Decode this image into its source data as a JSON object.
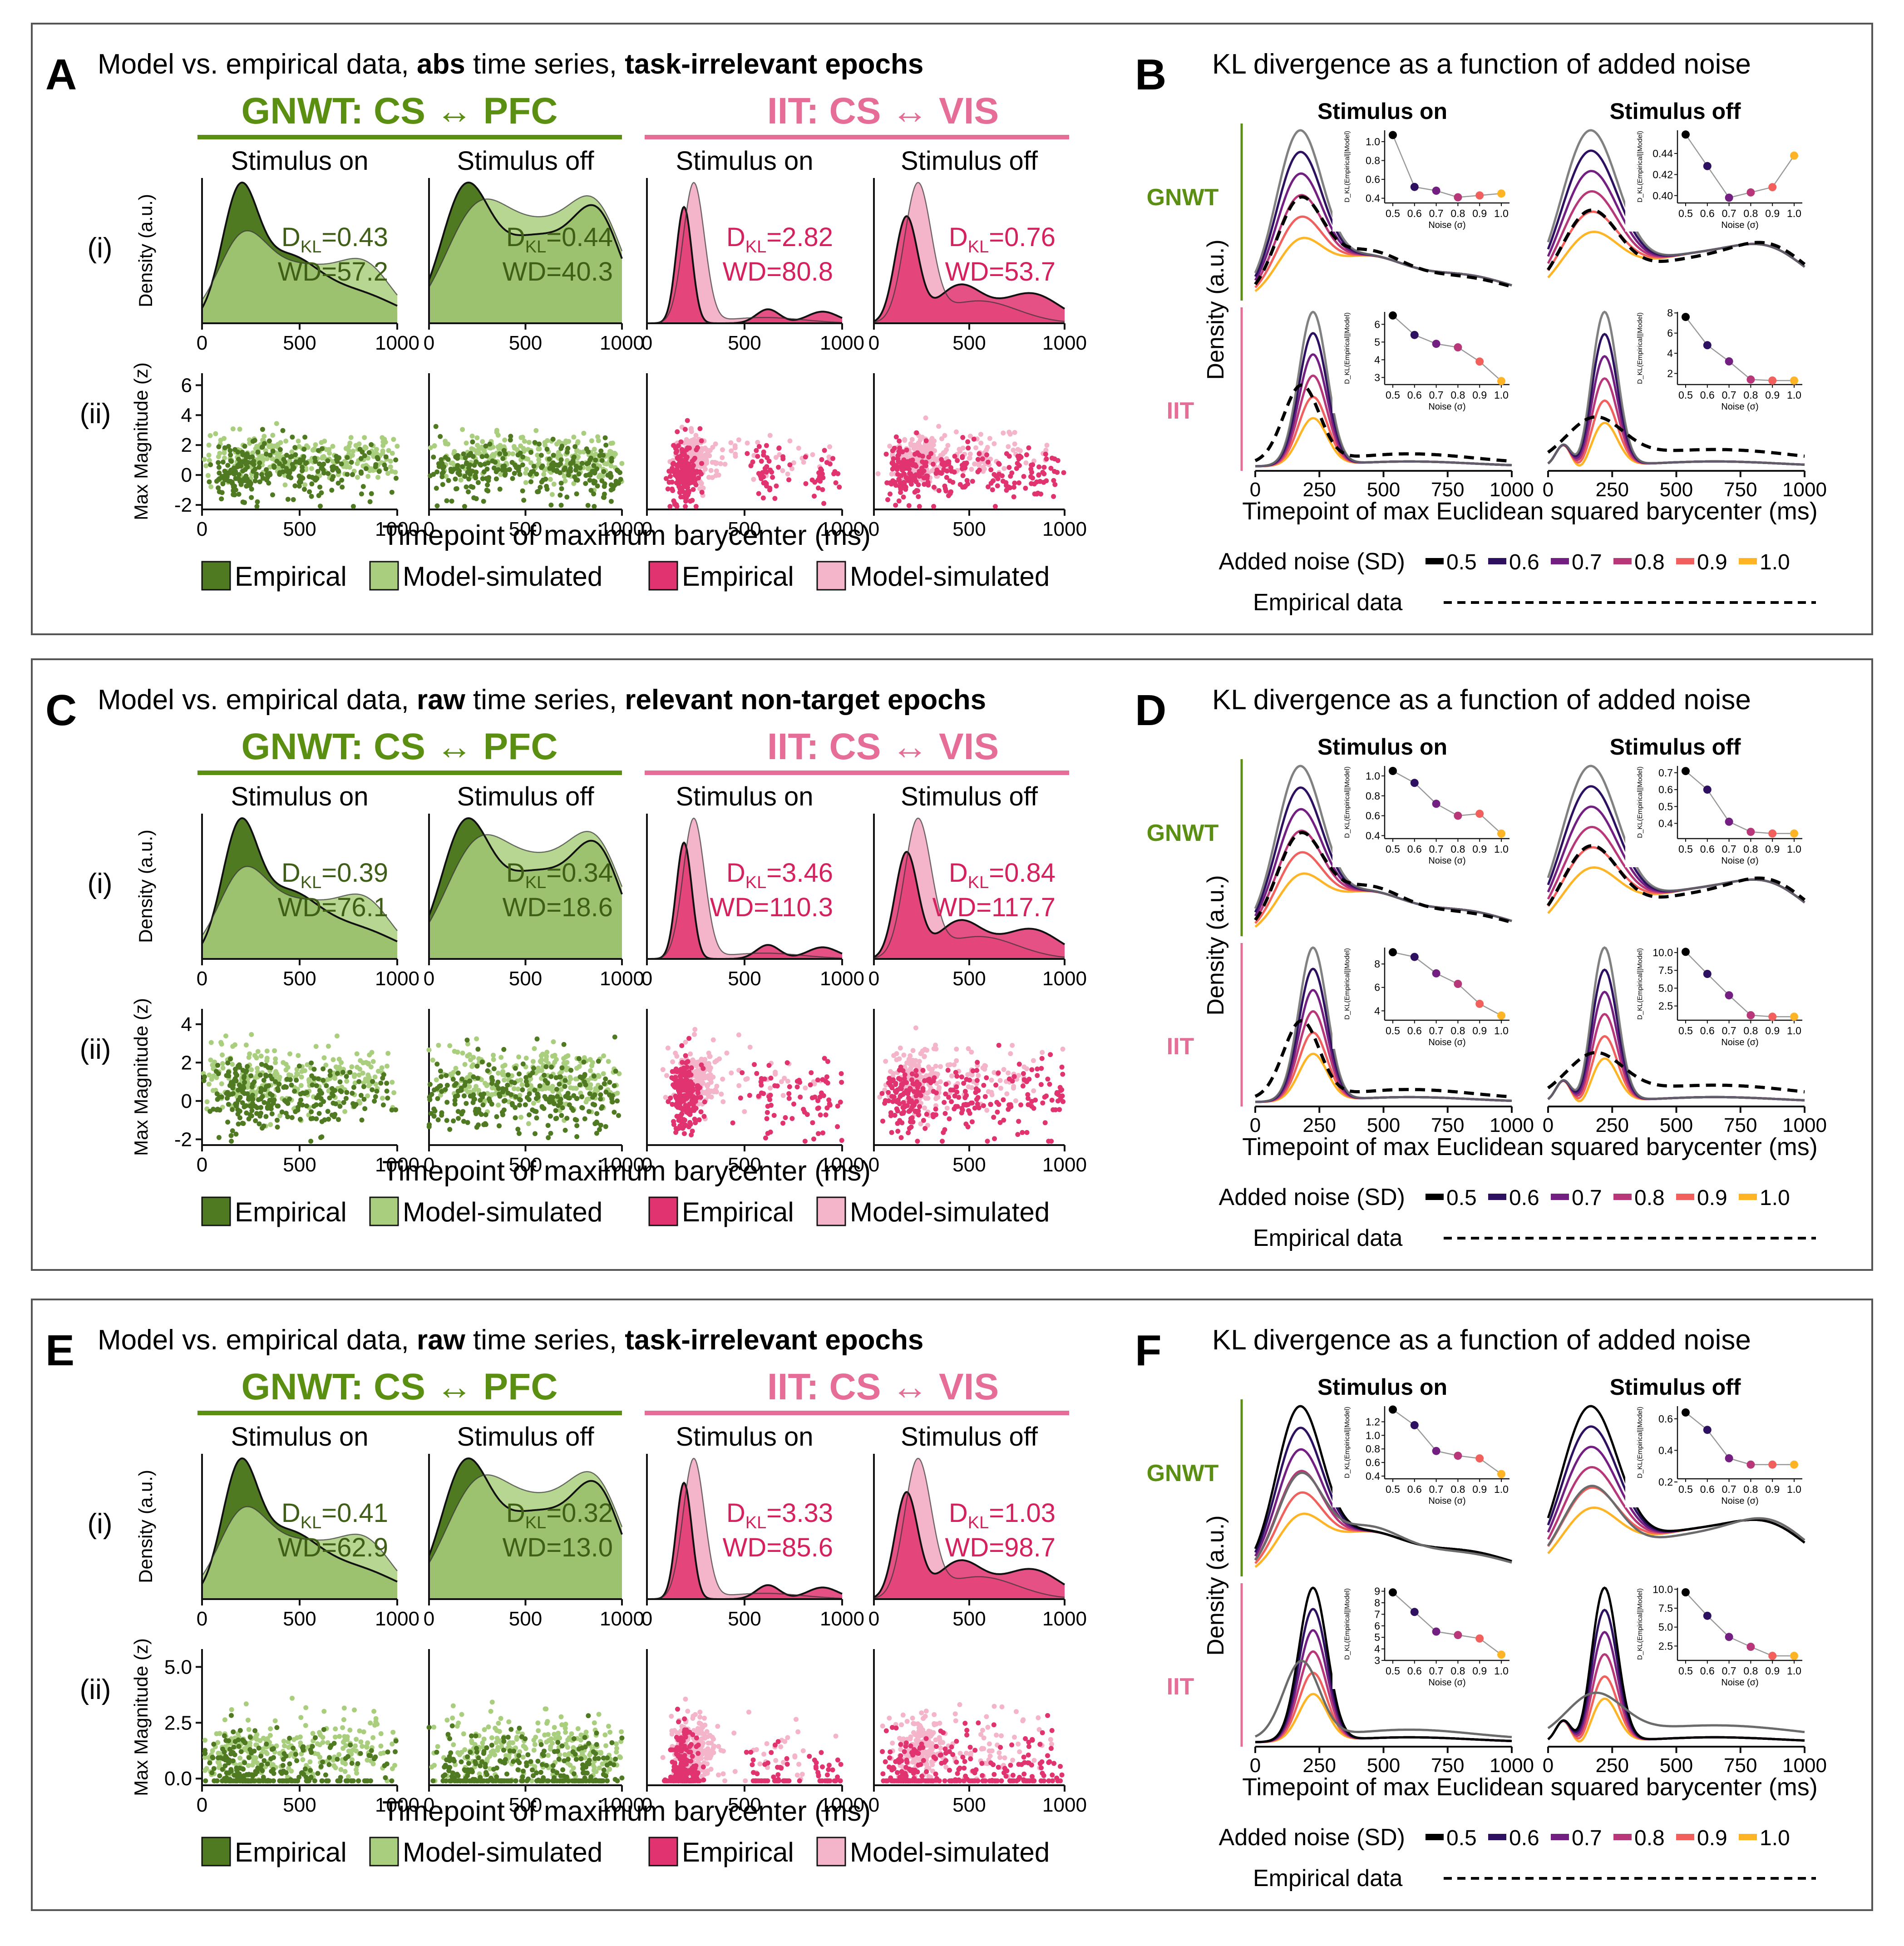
{
  "colors": {
    "gnwt": "#5b8f12",
    "gnwt_empirical": "#4f7a22",
    "gnwt_model": "#a9cf7e",
    "iit": "#e56d97",
    "iit_empirical": "#e0336f",
    "iit_model": "#f4b5cb",
    "gnwt_text": "#3f5f16",
    "iit_text": "#d6215f",
    "noise": [
      "#000000",
      "#2d1160",
      "#721f81",
      "#b73779",
      "#f1605d",
      "#feb424"
    ],
    "model_ref_grey": "#6b6b6b"
  },
  "common": {
    "theory_gnwt": "GNWT: CS ↔ PFC",
    "theory_iit": "IIT: CS ↔ VIS",
    "stim_on": "Stimulus on",
    "stim_off": "Stimulus off",
    "row_i": "(i)",
    "row_ii": "(ii)",
    "density_label": "Density (a.u.)",
    "maxmag_label": "Max Magnitude (z)",
    "xlabel_left": "Timepoint of maximum barycenter (ms)",
    "legend_empirical": "Empirical",
    "legend_model": "Model-simulated",
    "kl_title": "KL divergence as a function of added noise",
    "gnwt_row": "GNWT",
    "iit_row": "IIT",
    "density_label_right": "Density (a.u.)",
    "xlabel_right": "Timepoint of max Euclidean squared barycenter (ms)",
    "noise_legend_label": "Added noise (SD)",
    "noise_levels": [
      "0.5",
      "0.6",
      "0.7",
      "0.8",
      "0.9",
      "1.0"
    ],
    "empirical_data_label": "Empirical data",
    "inset_ylabel": "D_KL(Empirical||Model)",
    "inset_xlabel": "Noise (σ)",
    "inset_xticks": [
      "0.5",
      "0.6",
      "0.7",
      "0.8",
      "0.9",
      "1.0"
    ],
    "xticks_left": [
      "0",
      "500",
      "1000"
    ],
    "xticks_right": [
      "0",
      "250",
      "500",
      "750",
      "1000"
    ]
  },
  "panels": [
    {
      "letter_left": "A",
      "letter_right": "B",
      "title_parts": [
        {
          "text": "Model vs. empirical data, ",
          "bold": false
        },
        {
          "text": "abs",
          "bold": true
        },
        {
          "text": " time series, ",
          "bold": false
        },
        {
          "text": "task-irrelevant epochs",
          "bold": true
        }
      ],
      "stats": [
        {
          "dkl": "=0.43",
          "wd": "WD=57.2"
        },
        {
          "dkl": "=0.44",
          "wd": "WD=40.3"
        },
        {
          "dkl": "=2.82",
          "wd": "WD=80.8"
        },
        {
          "dkl": "=0.76",
          "wd": "WD=53.7"
        }
      ],
      "scatter_yticks": [
        "6",
        "4",
        "2",
        "0",
        "-2"
      ],
      "empirical_style": "dashed",
      "insets": [
        {
          "values": [
            1.07,
            0.52,
            0.48,
            0.41,
            0.43,
            0.45
          ],
          "yticks": [
            "0.4",
            "0.6",
            "0.8",
            "1.0"
          ],
          "ylim": [
            0.35,
            1.12
          ]
        },
        {
          "values": [
            0.458,
            0.428,
            0.398,
            0.403,
            0.408,
            0.438
          ],
          "yticks": [
            "0.40",
            "0.42",
            "0.44"
          ],
          "ylim": [
            0.393,
            0.462
          ]
        },
        {
          "values": [
            6.5,
            5.4,
            4.9,
            4.7,
            3.9,
            2.8
          ],
          "yticks": [
            "3",
            "4",
            "5",
            "6"
          ],
          "ylim": [
            2.6,
            6.7
          ]
        },
        {
          "values": [
            7.6,
            4.8,
            3.2,
            1.4,
            1.3,
            1.3
          ],
          "yticks": [
            "2",
            "4",
            "6",
            "8"
          ],
          "ylim": [
            0.9,
            8.1
          ]
        }
      ]
    },
    {
      "letter_left": "C",
      "letter_right": "D",
      "title_parts": [
        {
          "text": "Model vs. empirical data, ",
          "bold": false
        },
        {
          "text": "raw",
          "bold": true
        },
        {
          "text": " time series, ",
          "bold": false
        },
        {
          "text": "relevant non-target epochs",
          "bold": true
        }
      ],
      "stats": [
        {
          "dkl": "=0.39",
          "wd": "WD=76.1"
        },
        {
          "dkl": "=0.34",
          "wd": "WD=18.6"
        },
        {
          "dkl": "=3.46",
          "wd": "WD=110.3"
        },
        {
          "dkl": "=0.84",
          "wd": "WD=117.7"
        }
      ],
      "scatter_yticks": [
        "4",
        "2",
        "0",
        "-2"
      ],
      "empirical_style": "dashed",
      "insets": [
        {
          "values": [
            1.05,
            0.93,
            0.72,
            0.6,
            0.62,
            0.42
          ],
          "yticks": [
            "0.4",
            "0.6",
            "0.8",
            "1.0"
          ],
          "ylim": [
            0.37,
            1.1
          ]
        },
        {
          "values": [
            0.71,
            0.6,
            0.41,
            0.35,
            0.34,
            0.34
          ],
          "yticks": [
            "0.4",
            "0.5",
            "0.6",
            "0.7"
          ],
          "ylim": [
            0.31,
            0.74
          ]
        },
        {
          "values": [
            9.0,
            8.6,
            7.2,
            6.3,
            4.6,
            3.6
          ],
          "yticks": [
            "4",
            "6",
            "8"
          ],
          "ylim": [
            3.2,
            9.4
          ]
        },
        {
          "values": [
            10.1,
            7.0,
            4.0,
            1.2,
            1.0,
            1.0
          ],
          "yticks": [
            "2.5",
            "5.0",
            "7.5",
            "10.0"
          ],
          "ylim": [
            0.5,
            10.7
          ]
        }
      ]
    },
    {
      "letter_left": "E",
      "letter_right": "F",
      "title_parts": [
        {
          "text": "Model vs. empirical data, ",
          "bold": false
        },
        {
          "text": "raw",
          "bold": true
        },
        {
          "text": " time series, ",
          "bold": false
        },
        {
          "text": "task-irrelevant epochs",
          "bold": true
        }
      ],
      "stats": [
        {
          "dkl": "=0.41",
          "wd": "WD=62.9"
        },
        {
          "dkl": "=0.32",
          "wd": "WD=13.0"
        },
        {
          "dkl": "=3.33",
          "wd": "WD=85.6"
        },
        {
          "dkl": "=1.03",
          "wd": "WD=98.7"
        }
      ],
      "scatter_yticks": [
        "5.0",
        "2.5",
        "0.0"
      ],
      "empirical_style": "grey",
      "insets": [
        {
          "values": [
            1.38,
            1.15,
            0.77,
            0.7,
            0.66,
            0.43
          ],
          "yticks": [
            "0.4",
            "0.6",
            "0.8",
            "1.0",
            "1.2"
          ],
          "ylim": [
            0.36,
            1.43
          ]
        },
        {
          "values": [
            0.64,
            0.53,
            0.35,
            0.31,
            0.31,
            0.31
          ],
          "yticks": [
            "0.2",
            "0.4",
            "0.6"
          ],
          "ylim": [
            0.22,
            0.68
          ]
        },
        {
          "values": [
            8.9,
            7.2,
            5.5,
            5.2,
            4.9,
            3.5
          ],
          "yticks": [
            "3",
            "4",
            "5",
            "6",
            "7",
            "8",
            "9"
          ],
          "ylim": [
            3.0,
            9.3
          ]
        },
        {
          "values": [
            9.6,
            6.5,
            3.7,
            2.4,
            1.2,
            1.2
          ],
          "yticks": [
            "2.5",
            "5.0",
            "7.5",
            "10.0"
          ],
          "ylim": [
            0.6,
            10.2
          ]
        }
      ]
    }
  ],
  "chart_data": [
    {
      "type": "scatter",
      "title": "Model vs. empirical data, abs time series, task-irrelevant epochs",
      "series": [
        {
          "name": "Empirical"
        },
        {
          "name": "Model-simulated"
        }
      ],
      "xlim": [
        0,
        1000
      ],
      "xlabel": "Timepoint of maximum barycenter (ms)",
      "ylabel": "Max Magnitude (z)",
      "values": [
        {
          "theory": "GNWT: CS ↔ PFC",
          "condition": "Stimulus on",
          "dkl": 0.43,
          "wd": 57.2
        },
        {
          "theory": "GNWT: CS ↔ PFC",
          "condition": "Stimulus off",
          "dkl": 0.44,
          "wd": 40.3
        },
        {
          "theory": "IIT: CS ↔ VIS",
          "condition": "Stimulus on",
          "dkl": 2.82,
          "wd": 80.8
        },
        {
          "theory": "IIT: CS ↔ VIS",
          "condition": "Stimulus off",
          "dkl": 0.76,
          "wd": 53.7
        }
      ]
    },
    {
      "type": "line",
      "title": "KL divergence as a function of added noise",
      "x": [
        0.5,
        0.6,
        0.7,
        0.8,
        0.9,
        1.0
      ],
      "xlabel": "Noise (σ)",
      "ylabel": "D_KL(Empirical||Model)",
      "series": [
        {
          "name": "GNWT · Stimulus on",
          "values": [
            1.07,
            0.52,
            0.48,
            0.41,
            0.43,
            0.45
          ]
        },
        {
          "name": "GNWT · Stimulus off",
          "values": [
            0.458,
            0.428,
            0.398,
            0.403,
            0.408,
            0.438
          ]
        },
        {
          "name": "IIT · Stimulus on",
          "values": [
            6.5,
            5.4,
            4.9,
            4.7,
            3.9,
            2.8
          ]
        },
        {
          "name": "IIT · Stimulus off",
          "values": [
            7.6,
            4.8,
            3.2,
            1.4,
            1.3,
            1.3
          ]
        }
      ]
    },
    {
      "type": "scatter",
      "title": "Model vs. empirical data, raw time series, relevant non-target epochs",
      "series": [
        {
          "name": "Empirical"
        },
        {
          "name": "Model-simulated"
        }
      ],
      "xlim": [
        0,
        1000
      ],
      "xlabel": "Timepoint of maximum barycenter (ms)",
      "ylabel": "Max Magnitude (z)",
      "values": [
        {
          "theory": "GNWT: CS ↔ PFC",
          "condition": "Stimulus on",
          "dkl": 0.39,
          "wd": 76.1
        },
        {
          "theory": "GNWT: CS ↔ PFC",
          "condition": "Stimulus off",
          "dkl": 0.34,
          "wd": 18.6
        },
        {
          "theory": "IIT: CS ↔ VIS",
          "condition": "Stimulus on",
          "dkl": 3.46,
          "wd": 110.3
        },
        {
          "theory": "IIT: CS ↔ VIS",
          "condition": "Stimulus off",
          "dkl": 0.84,
          "wd": 117.7
        }
      ]
    },
    {
      "type": "line",
      "title": "KL divergence as a function of added noise",
      "x": [
        0.5,
        0.6,
        0.7,
        0.8,
        0.9,
        1.0
      ],
      "xlabel": "Noise (σ)",
      "ylabel": "D_KL(Empirical||Model)",
      "series": [
        {
          "name": "GNWT · Stimulus on",
          "values": [
            1.05,
            0.93,
            0.72,
            0.6,
            0.62,
            0.42
          ]
        },
        {
          "name": "GNWT · Stimulus off",
          "values": [
            0.71,
            0.6,
            0.41,
            0.35,
            0.34,
            0.34
          ]
        },
        {
          "name": "IIT · Stimulus on",
          "values": [
            9.0,
            8.6,
            7.2,
            6.3,
            4.6,
            3.6
          ]
        },
        {
          "name": "IIT · Stimulus off",
          "values": [
            10.1,
            7.0,
            4.0,
            1.2,
            1.0,
            1.0
          ]
        }
      ]
    },
    {
      "type": "scatter",
      "title": "Model vs. empirical data, raw time series, task-irrelevant epochs",
      "series": [
        {
          "name": "Empirical"
        },
        {
          "name": "Model-simulated"
        }
      ],
      "xlim": [
        0,
        1000
      ],
      "xlabel": "Timepoint of maximum barycenter (ms)",
      "ylabel": "Max Magnitude (z)",
      "values": [
        {
          "theory": "GNWT: CS ↔ PFC",
          "condition": "Stimulus on",
          "dkl": 0.41,
          "wd": 62.9
        },
        {
          "theory": "GNWT: CS ↔ PFC",
          "condition": "Stimulus off",
          "dkl": 0.32,
          "wd": 13.0
        },
        {
          "theory": "IIT: CS ↔ VIS",
          "condition": "Stimulus on",
          "dkl": 3.33,
          "wd": 85.6
        },
        {
          "theory": "IIT: CS ↔ VIS",
          "condition": "Stimulus off",
          "dkl": 1.03,
          "wd": 98.7
        }
      ]
    },
    {
      "type": "line",
      "title": "KL divergence as a function of added noise",
      "x": [
        0.5,
        0.6,
        0.7,
        0.8,
        0.9,
        1.0
      ],
      "xlabel": "Noise (σ)",
      "ylabel": "D_KL(Empirical||Model)",
      "series": [
        {
          "name": "GNWT · Stimulus on",
          "values": [
            1.38,
            1.15,
            0.77,
            0.7,
            0.66,
            0.43
          ]
        },
        {
          "name": "GNWT · Stimulus off",
          "values": [
            0.64,
            0.53,
            0.35,
            0.31,
            0.31,
            0.31
          ]
        },
        {
          "name": "IIT · Stimulus on",
          "values": [
            8.9,
            7.2,
            5.5,
            5.2,
            4.9,
            3.5
          ]
        },
        {
          "name": "IIT · Stimulus off",
          "values": [
            9.6,
            6.5,
            3.7,
            2.4,
            1.2,
            1.2
          ]
        }
      ]
    }
  ]
}
